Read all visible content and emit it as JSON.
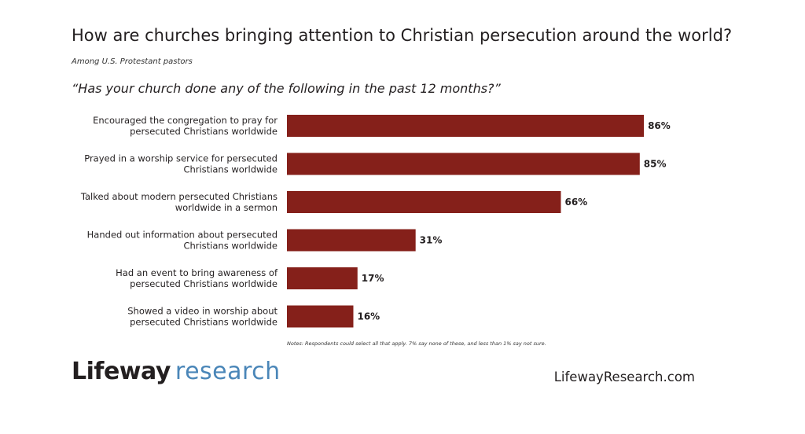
{
  "title": "How are churches bringing attention to Christian persecution around the world?",
  "subtitle": "Among U.S. Protestant pastors",
  "question": "“Has your church done any of the following in the past 12 months?”",
  "notes": "Notes: Respondents could select all that apply. 7% say none of these, and less than 1% say not sure.",
  "brand": {
    "logo_part1": "Lifeway",
    "logo_part2": "research",
    "website": "LifewayResearch.com"
  },
  "colors": {
    "bar": "#85201a",
    "logo_accent": "#4a86b8"
  },
  "chart_data": {
    "type": "bar",
    "orientation": "horizontal",
    "categories": [
      [
        "Encouraged the congregation to pray for",
        "persecuted Christians worldwide"
      ],
      [
        "Prayed in a worship service for persecuted",
        "Christians worldwide"
      ],
      [
        "Talked about modern persecuted Christians",
        "worldwide in a sermon"
      ],
      [
        "Handed out information about persecuted",
        "Christians worldwide"
      ],
      [
        "Had an event to bring awareness of",
        "persecuted Christians worldwide"
      ],
      [
        "Showed a video in worship about",
        "persecuted Christians worldwide"
      ]
    ],
    "values": [
      86,
      85,
      66,
      31,
      17,
      16
    ],
    "value_labels": [
      "86%",
      "85%",
      "66%",
      "31%",
      "17%",
      "16%"
    ],
    "xlim": [
      0,
      100
    ],
    "grid": false,
    "legend": "none"
  }
}
